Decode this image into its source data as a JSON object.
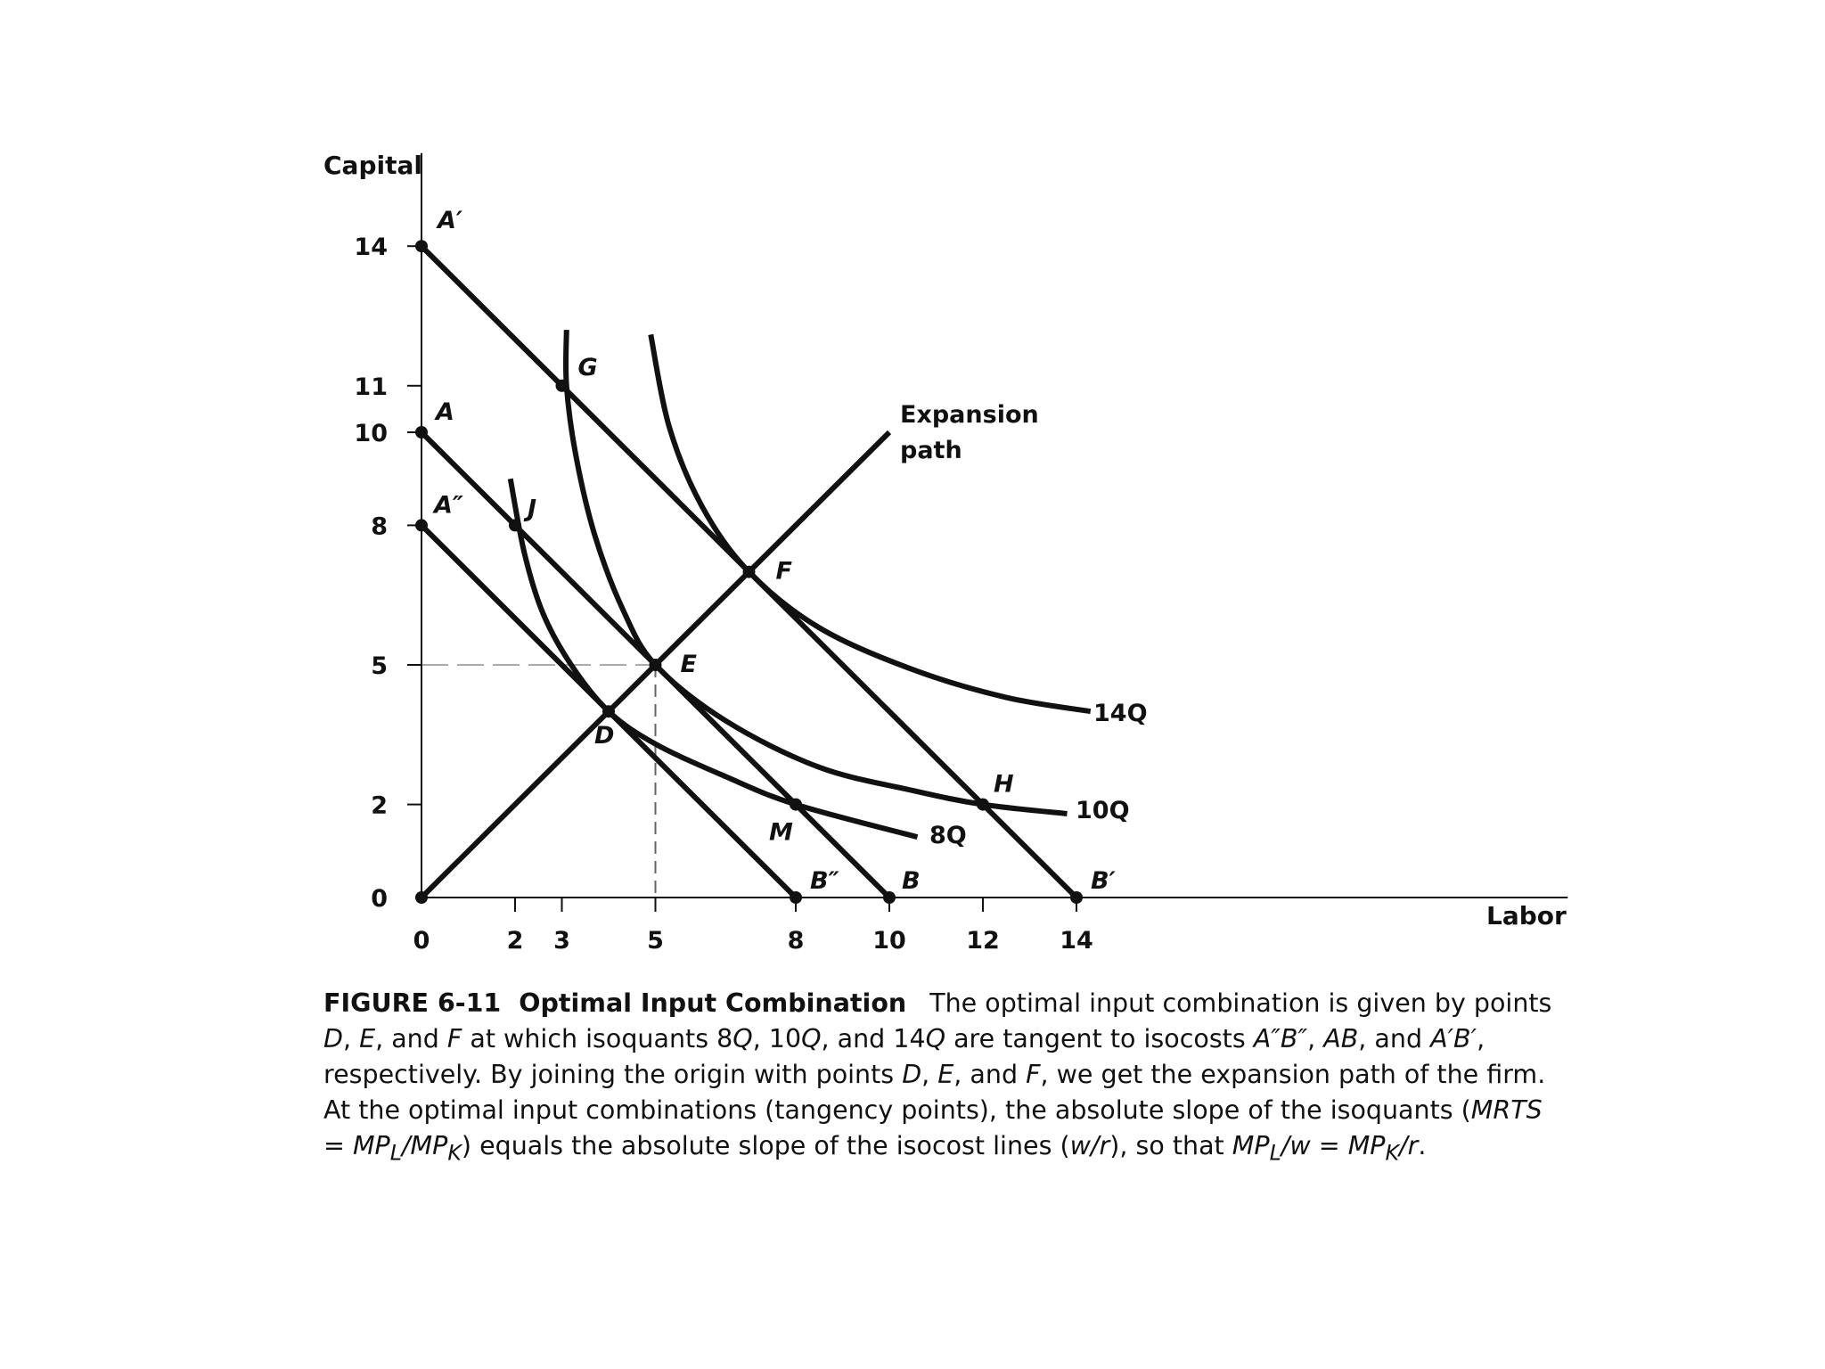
{
  "chart_data": {
    "type": "line",
    "title": "",
    "xlabel": "Labor",
    "ylabel": "Capital",
    "xlim": [
      0,
      24.5
    ],
    "ylim": [
      0,
      16
    ],
    "x_ticks": [
      0,
      2,
      3,
      5,
      8,
      10,
      12,
      14
    ],
    "y_ticks": [
      0,
      2,
      5,
      8,
      10,
      11,
      14
    ],
    "isocosts": [
      {
        "from": [
          0,
          8
        ],
        "to": [
          8,
          0
        ]
      },
      {
        "from": [
          0,
          10
        ],
        "to": [
          10,
          0
        ]
      },
      {
        "from": [
          0,
          14
        ],
        "to": [
          14,
          0
        ]
      }
    ],
    "isoquants": [
      {
        "name": "8Q",
        "points": [
          [
            1.9,
            9
          ],
          [
            2.2,
            7.4
          ],
          [
            2.6,
            6.1
          ],
          [
            3.2,
            5.0
          ],
          [
            4.0,
            4.0
          ],
          [
            5.0,
            3.3
          ],
          [
            6.5,
            2.6
          ],
          [
            8.0,
            2.0
          ],
          [
            10.6,
            1.3
          ]
        ]
      },
      {
        "name": "10Q",
        "points": [
          [
            3.1,
            12.2
          ],
          [
            3.1,
            11.0
          ],
          [
            3.3,
            9.5
          ],
          [
            3.7,
            7.8
          ],
          [
            4.3,
            6.2
          ],
          [
            5.0,
            5.0
          ],
          [
            6.5,
            3.8
          ],
          [
            8.5,
            2.8
          ],
          [
            10.5,
            2.3
          ],
          [
            12.0,
            2.0
          ],
          [
            13.8,
            1.8
          ]
        ]
      },
      {
        "name": "14Q",
        "points": [
          [
            4.9,
            12.1
          ],
          [
            5.3,
            10.1
          ],
          [
            6.0,
            8.4
          ],
          [
            7.0,
            7.0
          ],
          [
            8.5,
            5.8
          ],
          [
            10.5,
            4.9
          ],
          [
            12.5,
            4.3
          ],
          [
            14.3,
            4.0
          ]
        ]
      }
    ],
    "expansion_path": {
      "name": "Expansion path",
      "from": [
        0,
        0
      ],
      "to": [
        10,
        10
      ]
    },
    "points": [
      {
        "label": "0",
        "x": 0,
        "y": 0
      },
      {
        "label": "A′",
        "x": 0,
        "y": 14
      },
      {
        "label": "A",
        "x": 0,
        "y": 10
      },
      {
        "label": "A″",
        "x": 0,
        "y": 8
      },
      {
        "label": "B″",
        "x": 8,
        "y": 0
      },
      {
        "label": "B",
        "x": 10,
        "y": 0
      },
      {
        "label": "B′",
        "x": 14,
        "y": 0
      },
      {
        "label": "G",
        "x": 3,
        "y": 11
      },
      {
        "label": "J",
        "x": 2,
        "y": 8
      },
      {
        "label": "F",
        "x": 7,
        "y": 7
      },
      {
        "label": "E",
        "x": 5,
        "y": 5
      },
      {
        "label": "D",
        "x": 4,
        "y": 4
      },
      {
        "label": "M",
        "x": 8,
        "y": 2
      },
      {
        "label": "H",
        "x": 12,
        "y": 2
      }
    ],
    "guides": [
      {
        "from": [
          0,
          5
        ],
        "to": [
          5,
          5
        ]
      },
      {
        "from": [
          5,
          5
        ],
        "to": [
          5,
          0
        ]
      }
    ],
    "curve_labels": {
      "q8": "8Q",
      "q10": "10Q",
      "q14": "14Q",
      "expansion_line1": "Expansion",
      "expansion_line2": "path"
    }
  },
  "caption": {
    "figure_number": "FIGURE 6-11",
    "figure_title": "Optimal Input Combination",
    "p1": "The optimal input combination is given by points ",
    "D": "D",
    "c1": ", ",
    "E": "E",
    "c2": ", and ",
    "F": "F",
    "p2": " at which isoquants 8",
    "Q1": "Q",
    "p3": ", 10",
    "Q2": "Q",
    "p4": ", and 14",
    "Q3": "Q",
    "p5": " are tangent to isocosts ",
    "iso1": "A″B″",
    "c3": ", ",
    "iso2": "AB",
    "c4": ", and ",
    "iso3": "A′B′",
    "p6": ", respectively. By joining the origin with points ",
    "D2": "D",
    "c5": ", ",
    "E2": "E",
    "c6": ", and ",
    "F2": "F",
    "p7": ", we get the expansion path of the firm. At the optimal input combinations (tangency points), the absolute slope of the isoquants (",
    "mrts": "MRTS = MP",
    "subL": "L",
    "slash1": "/MP",
    "subK": "K",
    "p8": ") equals the absolute slope of the isocost lines (",
    "wr": "w/r",
    "p9": "), so that ",
    "mpl": "MP",
    "subL2": "L",
    "eq": "/w = MP",
    "subK2": "K",
    "end": "/r",
    "period": "."
  }
}
